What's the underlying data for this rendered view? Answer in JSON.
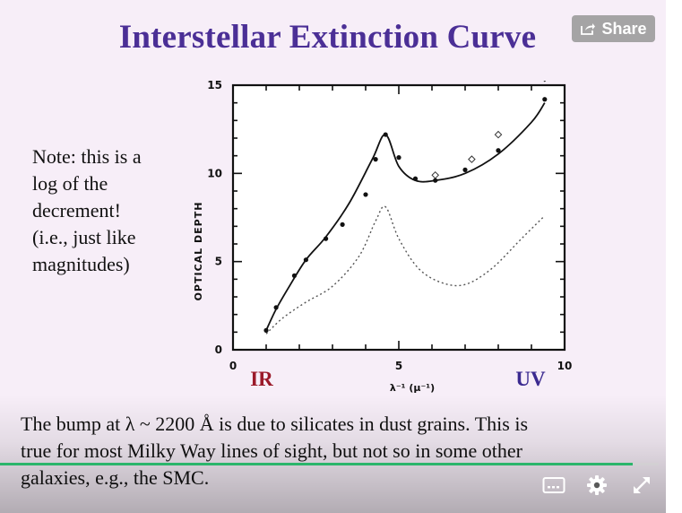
{
  "slide": {
    "title": "Interstellar Extinction Curve",
    "note_lines": [
      "Note: this is a",
      "log of the",
      "decrement!",
      "(i.e., just like",
      "magnitudes)"
    ],
    "caption_lines": [
      "The bump at λ ~ 2200 Å is due to silicates  in dust grains.  This is",
      "true for most Milky Way lines of sight, but not so in some other",
      "galaxies, e.g., the SMC."
    ]
  },
  "share": {
    "label": "Share",
    "icon": "share-icon"
  },
  "player": {
    "progress": 0.96,
    "accent_color": "#2bb56b",
    "icons": [
      "captions-icon",
      "gear-icon",
      "fullscreen-icon"
    ]
  },
  "chart_data": {
    "type": "line",
    "xlabel": "λ⁻¹ (μ⁻¹)",
    "ylabel": "OPTICAL   DEPTH",
    "xlim": [
      0,
      10
    ],
    "ylim": [
      0,
      15
    ],
    "x_ticks": [
      "0",
      "5",
      "10"
    ],
    "y_ticks": [
      "0",
      "5",
      "10",
      "15"
    ],
    "annotations": {
      "left": "IR",
      "right": "UV"
    },
    "series": [
      {
        "style": "solid",
        "x": [
          1.0,
          1.3,
          1.7,
          2.2,
          2.8,
          3.5,
          4.2,
          4.6,
          5.0,
          5.5,
          6.1,
          7.0,
          8.0,
          9.0,
          9.4
        ],
        "y": [
          1.1,
          2.3,
          3.6,
          5.1,
          6.4,
          8.3,
          10.8,
          12.2,
          10.4,
          9.6,
          9.6,
          10.0,
          11.1,
          12.9,
          14.0
        ]
      },
      {
        "style": "dotted",
        "x": [
          1.0,
          1.5,
          2.2,
          3.0,
          3.8,
          4.3,
          4.6,
          5.0,
          5.6,
          6.3,
          7.0,
          7.8,
          8.7,
          9.4
        ],
        "y": [
          0.9,
          1.8,
          2.7,
          3.6,
          5.3,
          7.3,
          8.1,
          6.3,
          4.6,
          3.8,
          3.7,
          4.6,
          6.3,
          7.6
        ]
      },
      {
        "style": "points",
        "x": [
          1.0,
          1.3,
          1.85,
          2.2,
          2.8,
          3.3,
          4.0,
          4.3,
          4.6,
          5.0,
          5.5,
          6.1,
          7.0,
          8.0,
          9.4
        ],
        "y": [
          1.1,
          2.4,
          4.2,
          5.1,
          6.3,
          7.1,
          8.8,
          10.8,
          12.2,
          10.9,
          9.7,
          9.6,
          10.2,
          11.3,
          14.2
        ]
      },
      {
        "style": "open-diamonds",
        "x": [
          6.1,
          7.2,
          8.0,
          9.4
        ],
        "y": [
          9.9,
          10.8,
          12.2,
          15.4
        ]
      }
    ]
  }
}
